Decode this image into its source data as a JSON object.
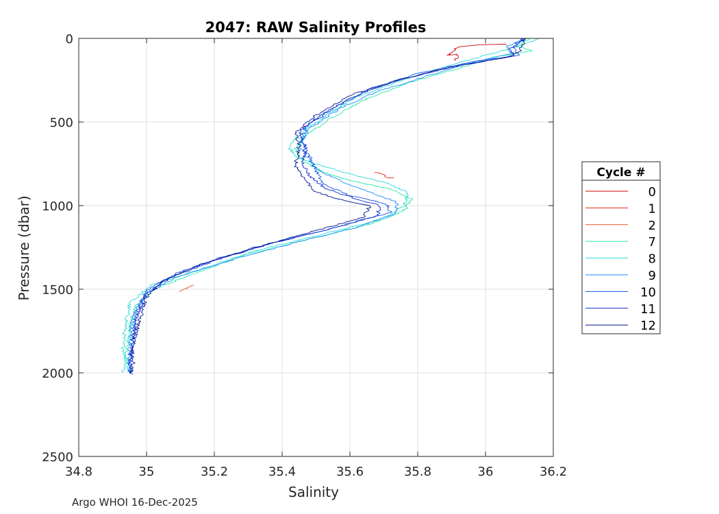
{
  "chart_data": {
    "type": "line",
    "title": "2047: RAW Salinity Profiles",
    "xlabel": "Salinity",
    "ylabel": "Pressure (dbar)",
    "xlim": [
      34.8,
      36.2
    ],
    "ylim": [
      0,
      2500
    ],
    "y_reversed": true,
    "grid": true,
    "x_ticks": [
      34.8,
      35,
      35.2,
      35.4,
      35.6,
      35.8,
      36,
      36.2
    ],
    "x_tick_labels": [
      "34.8",
      "35",
      "35.2",
      "35.4",
      "35.6",
      "35.8",
      "36",
      "36.2"
    ],
    "y_ticks": [
      0,
      500,
      1000,
      1500,
      2000,
      2500
    ],
    "y_tick_labels": [
      "0",
      "500",
      "1000",
      "1500",
      "2000",
      "2500"
    ],
    "legend": {
      "title": "Cycle #",
      "placement": "right-outside",
      "entries": [
        "0",
        "1",
        "2",
        "7",
        "8",
        "9",
        "10",
        "11",
        "12"
      ]
    },
    "series": [
      {
        "name": "0",
        "color": "#cc0000",
        "points": [
          [
            36.06,
            35
          ],
          [
            35.98,
            38
          ],
          [
            35.92,
            50
          ],
          [
            35.9,
            80
          ],
          [
            35.89,
            100
          ],
          [
            35.92,
            95
          ],
          [
            35.91,
            135
          ]
        ]
      },
      {
        "name": "1",
        "color": "#e8250a",
        "points": [
          [
            35.67,
            800
          ],
          [
            35.69,
            805
          ],
          [
            35.7,
            820
          ],
          [
            35.71,
            835
          ],
          [
            35.73,
            833
          ]
        ]
      },
      {
        "name": "2",
        "color": "#f05020",
        "points": [
          [
            35.1,
            1515
          ],
          [
            35.11,
            1500
          ],
          [
            35.12,
            1490
          ],
          [
            35.14,
            1475
          ]
        ]
      },
      {
        "name": "7",
        "color": "#22e8a8",
        "points": [
          [
            36.13,
            0
          ],
          [
            36.09,
            45
          ],
          [
            36.14,
            75
          ],
          [
            36.03,
            110
          ],
          [
            35.92,
            180
          ],
          [
            35.78,
            260
          ],
          [
            35.65,
            360
          ],
          [
            35.55,
            470
          ],
          [
            35.47,
            580
          ],
          [
            35.44,
            660
          ],
          [
            35.46,
            730
          ],
          [
            35.52,
            800
          ],
          [
            35.6,
            850
          ],
          [
            35.72,
            900
          ],
          [
            35.78,
            960
          ],
          [
            35.76,
            1030
          ],
          [
            35.66,
            1110
          ],
          [
            35.5,
            1190
          ],
          [
            35.3,
            1290
          ],
          [
            35.15,
            1400
          ],
          [
            35.02,
            1500
          ],
          [
            34.96,
            1620
          ],
          [
            34.95,
            1760
          ],
          [
            34.94,
            1900
          ],
          [
            34.95,
            2000
          ]
        ]
      },
      {
        "name": "8",
        "color": "#2ad8d8",
        "points": [
          [
            36.16,
            0
          ],
          [
            36.11,
            40
          ],
          [
            36.02,
            90
          ],
          [
            35.88,
            170
          ],
          [
            35.74,
            260
          ],
          [
            35.62,
            350
          ],
          [
            35.53,
            460
          ],
          [
            35.46,
            560
          ],
          [
            35.42,
            650
          ],
          [
            35.45,
            720
          ],
          [
            35.58,
            800
          ],
          [
            35.7,
            860
          ],
          [
            35.77,
            920
          ],
          [
            35.76,
            1000
          ],
          [
            35.7,
            1080
          ],
          [
            35.52,
            1170
          ],
          [
            35.32,
            1270
          ],
          [
            35.16,
            1380
          ],
          [
            35.02,
            1470
          ],
          [
            34.95,
            1580
          ],
          [
            34.94,
            1700
          ],
          [
            34.93,
            1820
          ],
          [
            34.94,
            1950
          ],
          [
            34.93,
            2000
          ]
        ]
      },
      {
        "name": "9",
        "color": "#1a8cff",
        "points": [
          [
            36.12,
            0
          ],
          [
            36.06,
            50
          ],
          [
            36.08,
            90
          ],
          [
            35.95,
            150
          ],
          [
            35.82,
            230
          ],
          [
            35.68,
            320
          ],
          [
            35.57,
            420
          ],
          [
            35.48,
            540
          ],
          [
            35.45,
            630
          ],
          [
            35.47,
            700
          ],
          [
            35.5,
            780
          ],
          [
            35.57,
            850
          ],
          [
            35.66,
            920
          ],
          [
            35.74,
            980
          ],
          [
            35.73,
            1050
          ],
          [
            35.62,
            1130
          ],
          [
            35.44,
            1220
          ],
          [
            35.26,
            1320
          ],
          [
            35.1,
            1420
          ],
          [
            35.0,
            1520
          ],
          [
            34.96,
            1650
          ],
          [
            34.95,
            1800
          ],
          [
            34.95,
            1950
          ],
          [
            34.95,
            2005
          ]
        ]
      },
      {
        "name": "10",
        "color": "#1450e6",
        "points": [
          [
            36.12,
            0
          ],
          [
            36.08,
            60
          ],
          [
            36.1,
            100
          ],
          [
            35.96,
            140
          ],
          [
            35.8,
            210
          ],
          [
            35.66,
            300
          ],
          [
            35.55,
            420
          ],
          [
            35.47,
            530
          ],
          [
            35.46,
            620
          ],
          [
            35.48,
            700
          ],
          [
            35.5,
            790
          ],
          [
            35.52,
            870
          ],
          [
            35.6,
            940
          ],
          [
            35.71,
            990
          ],
          [
            35.72,
            1040
          ],
          [
            35.58,
            1120
          ],
          [
            35.4,
            1210
          ],
          [
            35.22,
            1310
          ],
          [
            35.08,
            1410
          ],
          [
            35.0,
            1510
          ],
          [
            34.97,
            1640
          ],
          [
            34.96,
            1790
          ],
          [
            34.95,
            1940
          ],
          [
            34.96,
            2010
          ]
        ]
      },
      {
        "name": "11",
        "color": "#0a28c8",
        "points": [
          [
            36.11,
            0
          ],
          [
            36.07,
            70
          ],
          [
            36.09,
            105
          ],
          [
            35.93,
            160
          ],
          [
            35.76,
            240
          ],
          [
            35.63,
            330
          ],
          [
            35.52,
            450
          ],
          [
            35.45,
            560
          ],
          [
            35.47,
            650
          ],
          [
            35.46,
            740
          ],
          [
            35.48,
            820
          ],
          [
            35.53,
            900
          ],
          [
            35.62,
            960
          ],
          [
            35.69,
            1000
          ],
          [
            35.68,
            1060
          ],
          [
            35.54,
            1140
          ],
          [
            35.36,
            1230
          ],
          [
            35.2,
            1330
          ],
          [
            35.07,
            1430
          ],
          [
            35.0,
            1530
          ],
          [
            34.97,
            1660
          ],
          [
            34.96,
            1810
          ],
          [
            34.95,
            1960
          ],
          [
            34.95,
            2000
          ]
        ]
      },
      {
        "name": "12",
        "color": "#00148c",
        "points": [
          [
            36.12,
            0
          ],
          [
            36.1,
            80
          ],
          [
            36.06,
            115
          ],
          [
            35.9,
            170
          ],
          [
            35.74,
            250
          ],
          [
            35.6,
            340
          ],
          [
            35.5,
            460
          ],
          [
            35.44,
            560
          ],
          [
            35.45,
            660
          ],
          [
            35.44,
            760
          ],
          [
            35.47,
            850
          ],
          [
            35.5,
            920
          ],
          [
            35.58,
            970
          ],
          [
            35.66,
            1000
          ],
          [
            35.64,
            1070
          ],
          [
            35.5,
            1150
          ],
          [
            35.32,
            1250
          ],
          [
            35.16,
            1350
          ],
          [
            35.05,
            1450
          ],
          [
            35.0,
            1550
          ],
          [
            34.98,
            1680
          ],
          [
            34.96,
            1830
          ],
          [
            34.96,
            1970
          ],
          [
            34.95,
            2005
          ]
        ]
      }
    ]
  },
  "footer": {
    "credit": "Argo WHOI 16-Dec-2025"
  }
}
